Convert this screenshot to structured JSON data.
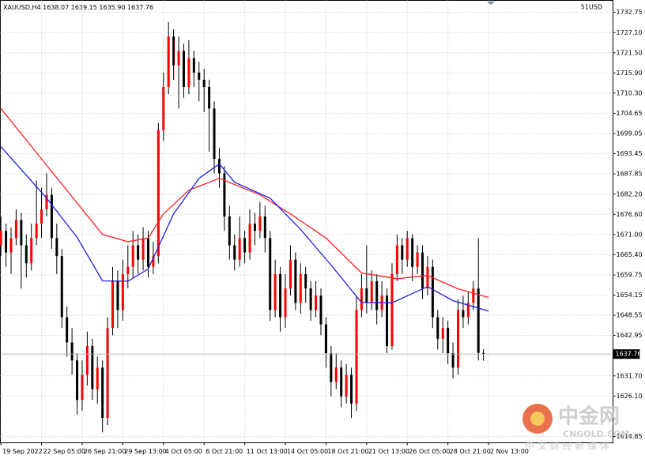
{
  "chart_data": {
    "type": "candlestick",
    "title": "XAUUSD,H4",
    "header_ohlc": [
      "1638.07",
      "1639.15",
      "1635.90",
      "1637.76"
    ],
    "symbol_label": "51USD",
    "open": [
      1668,
      1672,
      1666,
      1670,
      1675,
      1668,
      1663,
      1670,
      1674,
      1678,
      1682,
      1670,
      1665,
      1648,
      1641,
      1636,
      1625,
      1632,
      1640,
      1628,
      1634,
      1620,
      1645,
      1658,
      1650,
      1660,
      1662,
      1668,
      1664,
      1670,
      1662,
      1665,
      1700,
      1712,
      1726,
      1718,
      1722,
      1712,
      1720,
      1716,
      1714,
      1712,
      1706,
      1692,
      1688,
      1676,
      1668,
      1664,
      1670,
      1666,
      1674,
      1672,
      1676,
      1670,
      1650,
      1660,
      1648,
      1656,
      1664,
      1652,
      1660,
      1656,
      1650,
      1654,
      1646,
      1638,
      1630,
      1634,
      1626,
      1632,
      1624,
      1650,
      1656,
      1652,
      1658,
      1650,
      1654,
      1640,
      1660,
      1668,
      1664,
      1670,
      1662,
      1666,
      1656,
      1662,
      1648,
      1642,
      1645,
      1638,
      1634,
      1650,
      1648,
      1652,
      1656,
      1638.07
    ],
    "high": [
      1676,
      1674,
      1673,
      1678,
      1677,
      1671,
      1674,
      1686,
      1684,
      1688,
      1684,
      1674,
      1667,
      1651,
      1645,
      1638,
      1636,
      1644,
      1642,
      1637,
      1636,
      1648,
      1662,
      1661,
      1664,
      1668,
      1672,
      1671,
      1673,
      1672,
      1669,
      1702,
      1716,
      1730,
      1728,
      1726,
      1724,
      1725,
      1722,
      1719,
      1717,
      1714,
      1708,
      1695,
      1690,
      1679,
      1671,
      1676,
      1672,
      1678,
      1677,
      1680,
      1679,
      1672,
      1664,
      1662,
      1660,
      1668,
      1666,
      1663,
      1662,
      1658,
      1658,
      1656,
      1648,
      1640,
      1638,
      1636,
      1635,
      1634,
      1654,
      1660,
      1668,
      1661,
      1660,
      1658,
      1656,
      1663,
      1671,
      1670,
      1672,
      1671,
      1668,
      1668,
      1665,
      1664,
      1650,
      1648,
      1647,
      1641,
      1653,
      1654,
      1655,
      1658,
      1670,
      1639.15
    ],
    "low": [
      1665,
      1662,
      1660,
      1668,
      1656,
      1659,
      1661,
      1668,
      1670,
      1676,
      1667,
      1660,
      1645,
      1637,
      1632,
      1621,
      1622,
      1629,
      1625,
      1624,
      1616,
      1618,
      1643,
      1645,
      1647,
      1656,
      1659,
      1660,
      1661,
      1659,
      1660,
      1663,
      1697,
      1710,
      1714,
      1706,
      1709,
      1710,
      1712,
      1708,
      1705,
      1694,
      1688,
      1684,
      1672,
      1664,
      1661,
      1662,
      1663,
      1664,
      1668,
      1670,
      1666,
      1647,
      1648,
      1644,
      1645,
      1654,
      1650,
      1649,
      1652,
      1647,
      1648,
      1643,
      1634,
      1626,
      1628,
      1623,
      1624,
      1620,
      1622,
      1648,
      1649,
      1650,
      1646,
      1648,
      1638,
      1639,
      1658,
      1660,
      1662,
      1658,
      1660,
      1653,
      1654,
      1645,
      1639,
      1638,
      1635,
      1631,
      1632,
      1645,
      1646,
      1650,
      1636,
      1635.9
    ],
    "close": [
      1672,
      1666,
      1670,
      1675,
      1668,
      1663,
      1670,
      1674,
      1678,
      1682,
      1670,
      1665,
      1648,
      1641,
      1636,
      1625,
      1632,
      1640,
      1628,
      1634,
      1620,
      1645,
      1658,
      1650,
      1660,
      1662,
      1668,
      1664,
      1670,
      1662,
      1665,
      1700,
      1712,
      1726,
      1718,
      1722,
      1712,
      1720,
      1716,
      1714,
      1712,
      1706,
      1692,
      1688,
      1676,
      1668,
      1664,
      1670,
      1666,
      1674,
      1672,
      1676,
      1670,
      1650,
      1660,
      1648,
      1656,
      1664,
      1652,
      1660,
      1656,
      1650,
      1654,
      1646,
      1638,
      1630,
      1634,
      1626,
      1632,
      1624,
      1650,
      1656,
      1652,
      1658,
      1650,
      1654,
      1640,
      1660,
      1668,
      1664,
      1670,
      1662,
      1666,
      1656,
      1662,
      1648,
      1642,
      1645,
      1638,
      1634,
      1650,
      1648,
      1652,
      1656,
      1638.07,
      1637.76
    ],
    "up_color": "#ff0000",
    "down_color": "#000000",
    "lines": [
      {
        "color": "#ff2020",
        "x": [
          0,
          20,
          25,
          29,
          32,
          37,
          43,
          51,
          57,
          64,
          71,
          78,
          84,
          90,
          96
        ],
        "values": [
          1706,
          1671,
          1669,
          1670,
          1676.7,
          1683.3,
          1686.6,
          1682,
          1676.7,
          1670,
          1660.3,
          1658.7,
          1659.6,
          1655.9,
          1653.5
        ]
      },
      {
        "color": "#2020e0",
        "x": [
          0,
          9,
          15,
          20,
          25,
          29,
          34,
          39,
          43,
          46,
          53,
          59,
          65,
          71,
          77,
          84,
          89,
          96
        ],
        "values": [
          1695.4,
          1681.1,
          1670.2,
          1658.1,
          1658,
          1661.4,
          1676.7,
          1686.6,
          1690.6,
          1685.5,
          1681.1,
          1672.4,
          1662.5,
          1652.1,
          1652,
          1656.5,
          1652.6,
          1649.7
        ]
      }
    ],
    "xlim": [
      -0.1,
      120.5
    ],
    "ylim": [
      1613.1,
      1736.05
    ],
    "xticks": [
      {
        "value": 0,
        "label": "19 Sep 2022"
      },
      {
        "value": 8,
        "label": "22 Sep 05:00"
      },
      {
        "value": 16,
        "label": "26 Sep 21:00"
      },
      {
        "value": 24,
        "label": "29 Sep 13:00"
      },
      {
        "value": 32,
        "label": "4 Oct 05:00"
      },
      {
        "value": 40,
        "label": "6 Oct 21:00"
      },
      {
        "value": 48,
        "label": "11 Oct 13:00"
      },
      {
        "value": 56,
        "label": "14 Oct 05:00"
      },
      {
        "value": 64,
        "label": "18 Oct 21:00"
      },
      {
        "value": 72,
        "label": "21 Oct 13:00"
      },
      {
        "value": 80,
        "label": "26 Oct 05:00"
      },
      {
        "value": 88,
        "label": "28 Oct 21:00"
      },
      {
        "value": 96,
        "label": "2 Nov 13:00"
      }
    ],
    "yticks": [
      1732.75,
      {
        "value": 1727.1,
        "label": "1727.10"
      },
      {
        "value": 1721.5,
        "label": "1721.50"
      },
      {
        "value": 1715.9,
        "label": "1715.90"
      },
      {
        "value": 1710.3,
        "label": "1710.30"
      },
      1704.65,
      1699.05,
      1693.45,
      1687.85,
      {
        "value": 1682.2,
        "label": "1682.20"
      },
      {
        "value": 1676.6,
        "label": "1676.60"
      },
      {
        "value": 1671,
        "label": "1671.00"
      },
      {
        "value": 1665.4,
        "label": "1665.40"
      },
      1659.75,
      1654.15,
      1648.55,
      1642.95,
      {
        "value": 1631.7,
        "label": "1631.70"
      },
      {
        "value": 1626.1,
        "label": "1626.10"
      },
      1614.85
    ],
    "grid": true
  },
  "watermark": {
    "logo": "中金网",
    "domain": "CNGOLD.COM",
    "tagline": "中 文 财 经 新 媒 体"
  }
}
